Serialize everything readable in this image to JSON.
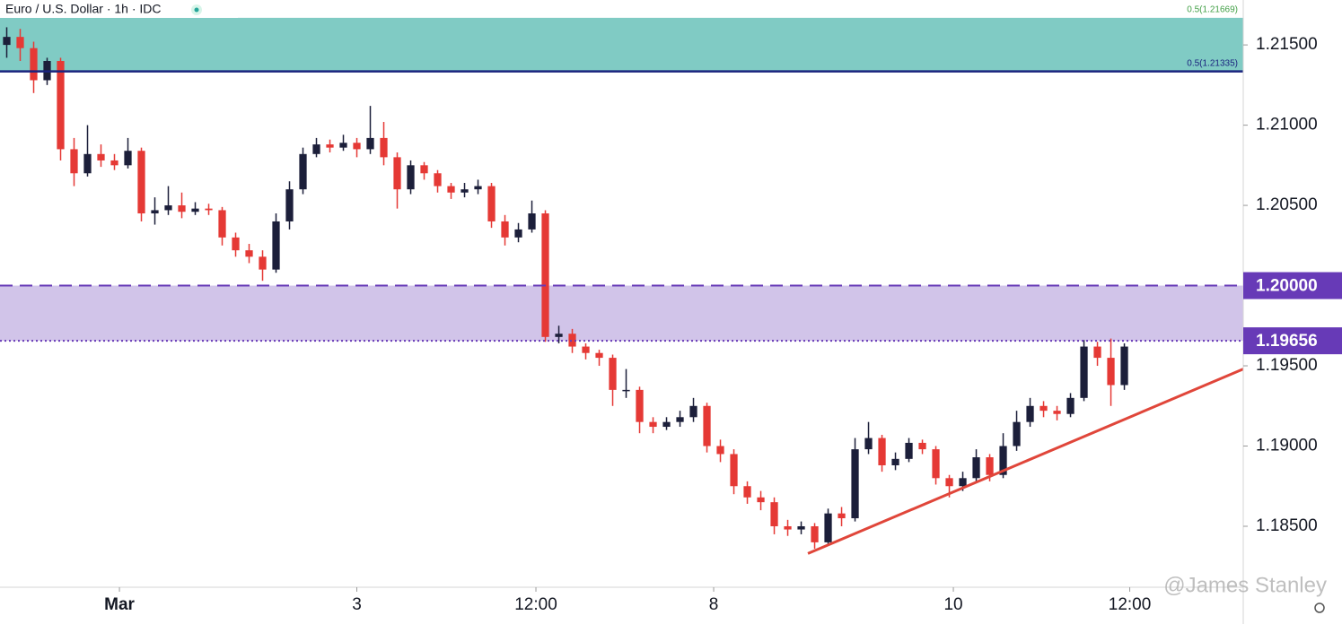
{
  "chart_data": {
    "type": "candlestick",
    "title": "Euro / U.S. Dollar · 1h · IDC",
    "watermark": "@James Stanley",
    "up_color": "#1c1f3a",
    "down_color": "#e53935",
    "xlim": [
      0,
      92.33
    ],
    "ylim": [
      1.1812,
      1.2178
    ],
    "xticks": [
      {
        "value": 8.87,
        "label": "Mar"
      },
      {
        "value": 26.5,
        "label": "3"
      },
      {
        "value": 39.8,
        "label": "12:00"
      },
      {
        "value": 53,
        "label": "8"
      },
      {
        "value": 70.8,
        "label": "10"
      },
      {
        "value": 83.9,
        "label": "12:00"
      }
    ],
    "yticks": [
      {
        "value": 1.215,
        "label": "1.21500"
      },
      {
        "value": 1.21,
        "label": "1.21000"
      },
      {
        "value": 1.205,
        "label": "1.20500"
      },
      {
        "value": 1.195,
        "label": "1.19500"
      },
      {
        "value": 1.19,
        "label": "1.19000"
      },
      {
        "value": 1.185,
        "label": "1.18500"
      }
    ],
    "zones": [
      {
        "from": 1.21335,
        "to": 1.21669,
        "color": "#80cbc4"
      },
      {
        "from": 1.19656,
        "to": 1.2,
        "color": "#d1c4e9"
      }
    ],
    "levels": [
      {
        "value": 1.21669,
        "label": "0.5(1.21669)",
        "color": "#43a047",
        "style": "none",
        "badge": false
      },
      {
        "value": 1.21335,
        "label": "0.5(1.21335)",
        "color": "#1a237e",
        "style": "solid",
        "badge": false
      },
      {
        "value": 1.2,
        "label": "1.20000",
        "color": "#673ab7",
        "style": "dashed",
        "badge": true
      },
      {
        "value": 1.19656,
        "label": "1.19656",
        "color": "#673ab7",
        "style": "dotted",
        "badge": true
      }
    ],
    "trendline": {
      "x": [
        60.0,
        92.33
      ],
      "y": [
        1.1833,
        1.1948
      ],
      "color": "#e0463a"
    },
    "open": [
      1.215,
      1.2155,
      1.2148,
      1.2128,
      1.214,
      1.2085,
      1.207,
      1.2082,
      1.2078,
      1.2075,
      1.2084,
      1.2045,
      1.2047,
      1.205,
      1.2046,
      1.2048,
      1.2047,
      1.203,
      1.2022,
      1.2018,
      1.201,
      1.204,
      1.206,
      1.2082,
      1.2088,
      1.2086,
      1.2089,
      1.2085,
      1.2092,
      1.208,
      1.206,
      1.2075,
      1.207,
      1.2062,
      1.2058,
      1.206,
      1.2062,
      1.204,
      1.203,
      1.2035,
      1.2045,
      1.1968,
      1.197,
      1.1962,
      1.1958,
      1.1955,
      1.1935,
      1.1935,
      1.1915,
      1.1912,
      1.1915,
      1.1918,
      1.1925,
      1.19,
      1.1895,
      1.1875,
      1.1868,
      1.1865,
      1.185,
      1.1848,
      1.185,
      1.184,
      1.1858,
      1.1855,
      1.1898,
      1.1905,
      1.1888,
      1.1892,
      1.1902,
      1.1898,
      1.188,
      1.1875,
      1.188,
      1.1893,
      1.1882,
      1.19,
      1.1915,
      1.1925,
      1.1922,
      1.192,
      1.193,
      1.1962,
      1.1955,
      1.1938
    ],
    "high": [
      1.2161,
      1.216,
      1.2152,
      1.2142,
      1.2142,
      1.2092,
      1.21,
      1.2088,
      1.2082,
      1.2092,
      1.2086,
      1.2055,
      1.2062,
      1.2058,
      1.2052,
      1.2051,
      1.2049,
      1.2033,
      1.2026,
      1.2022,
      1.2045,
      1.2065,
      1.2086,
      1.2092,
      1.2091,
      1.2094,
      1.2092,
      1.2112,
      1.2102,
      1.2083,
      1.2078,
      1.2077,
      1.2072,
      1.2064,
      1.2064,
      1.2066,
      1.2064,
      1.2044,
      1.2039,
      1.2053,
      1.2047,
      1.1975,
      1.1973,
      1.1964,
      1.196,
      1.1957,
      1.1948,
      1.1937,
      1.1918,
      1.1918,
      1.1922,
      1.193,
      1.1927,
      1.1904,
      1.1898,
      1.1878,
      1.1872,
      1.1868,
      1.1854,
      1.1853,
      1.1852,
      1.1861,
      1.1862,
      1.1905,
      1.1915,
      1.1907,
      1.1896,
      1.1905,
      1.1904,
      1.19,
      1.1882,
      1.1884,
      1.1898,
      1.1895,
      1.1908,
      1.1922,
      1.193,
      1.1928,
      1.1925,
      1.1933,
      1.1966,
      1.1965,
      1.1967,
      1.1964
    ],
    "low": [
      1.2142,
      1.214,
      1.212,
      1.2125,
      1.2078,
      1.2062,
      1.2068,
      1.2074,
      1.2072,
      1.2073,
      1.204,
      1.2038,
      1.2044,
      1.2042,
      1.2044,
      1.2044,
      1.2025,
      1.2018,
      1.2014,
      1.2003,
      1.2008,
      1.2035,
      1.2057,
      1.208,
      1.2083,
      1.2084,
      1.208,
      1.2082,
      1.2075,
      1.2048,
      1.2057,
      1.2066,
      1.2058,
      1.2054,
      1.2055,
      1.2057,
      1.2036,
      1.2025,
      1.2027,
      1.2033,
      1.1965,
      1.1964,
      1.1958,
      1.1954,
      1.195,
      1.1925,
      1.193,
      1.1908,
      1.1908,
      1.191,
      1.1912,
      1.1915,
      1.1896,
      1.189,
      1.187,
      1.1864,
      1.186,
      1.1845,
      1.1844,
      1.1845,
      1.1836,
      1.1838,
      1.185,
      1.1853,
      1.1895,
      1.1884,
      1.1885,
      1.189,
      1.1895,
      1.1876,
      1.1868,
      1.1872,
      1.1878,
      1.1878,
      1.188,
      1.1897,
      1.1912,
      1.1918,
      1.1916,
      1.1918,
      1.1928,
      1.195,
      1.1925,
      1.1935
    ],
    "close": [
      1.2155,
      1.2148,
      1.2128,
      1.214,
      1.2085,
      1.207,
      1.2082,
      1.2078,
      1.2075,
      1.2084,
      1.2045,
      1.2047,
      1.205,
      1.2046,
      1.2048,
      1.2047,
      1.203,
      1.2022,
      1.2018,
      1.201,
      1.204,
      1.206,
      1.2082,
      1.2088,
      1.2086,
      1.2089,
      1.2085,
      1.2092,
      1.208,
      1.206,
      1.2075,
      1.207,
      1.2062,
      1.2058,
      1.206,
      1.2062,
      1.204,
      1.203,
      1.2035,
      1.2045,
      1.1968,
      1.197,
      1.1962,
      1.1958,
      1.1955,
      1.1935,
      1.1935,
      1.1915,
      1.1912,
      1.1915,
      1.1918,
      1.1925,
      1.19,
      1.1895,
      1.1875,
      1.1868,
      1.1865,
      1.185,
      1.1848,
      1.185,
      1.184,
      1.1858,
      1.1855,
      1.1898,
      1.1905,
      1.1888,
      1.1892,
      1.1902,
      1.1898,
      1.188,
      1.1875,
      1.188,
      1.1893,
      1.1882,
      1.19,
      1.1915,
      1.1925,
      1.1922,
      1.192,
      1.193,
      1.1962,
      1.1955,
      1.1938,
      1.1962
    ]
  }
}
